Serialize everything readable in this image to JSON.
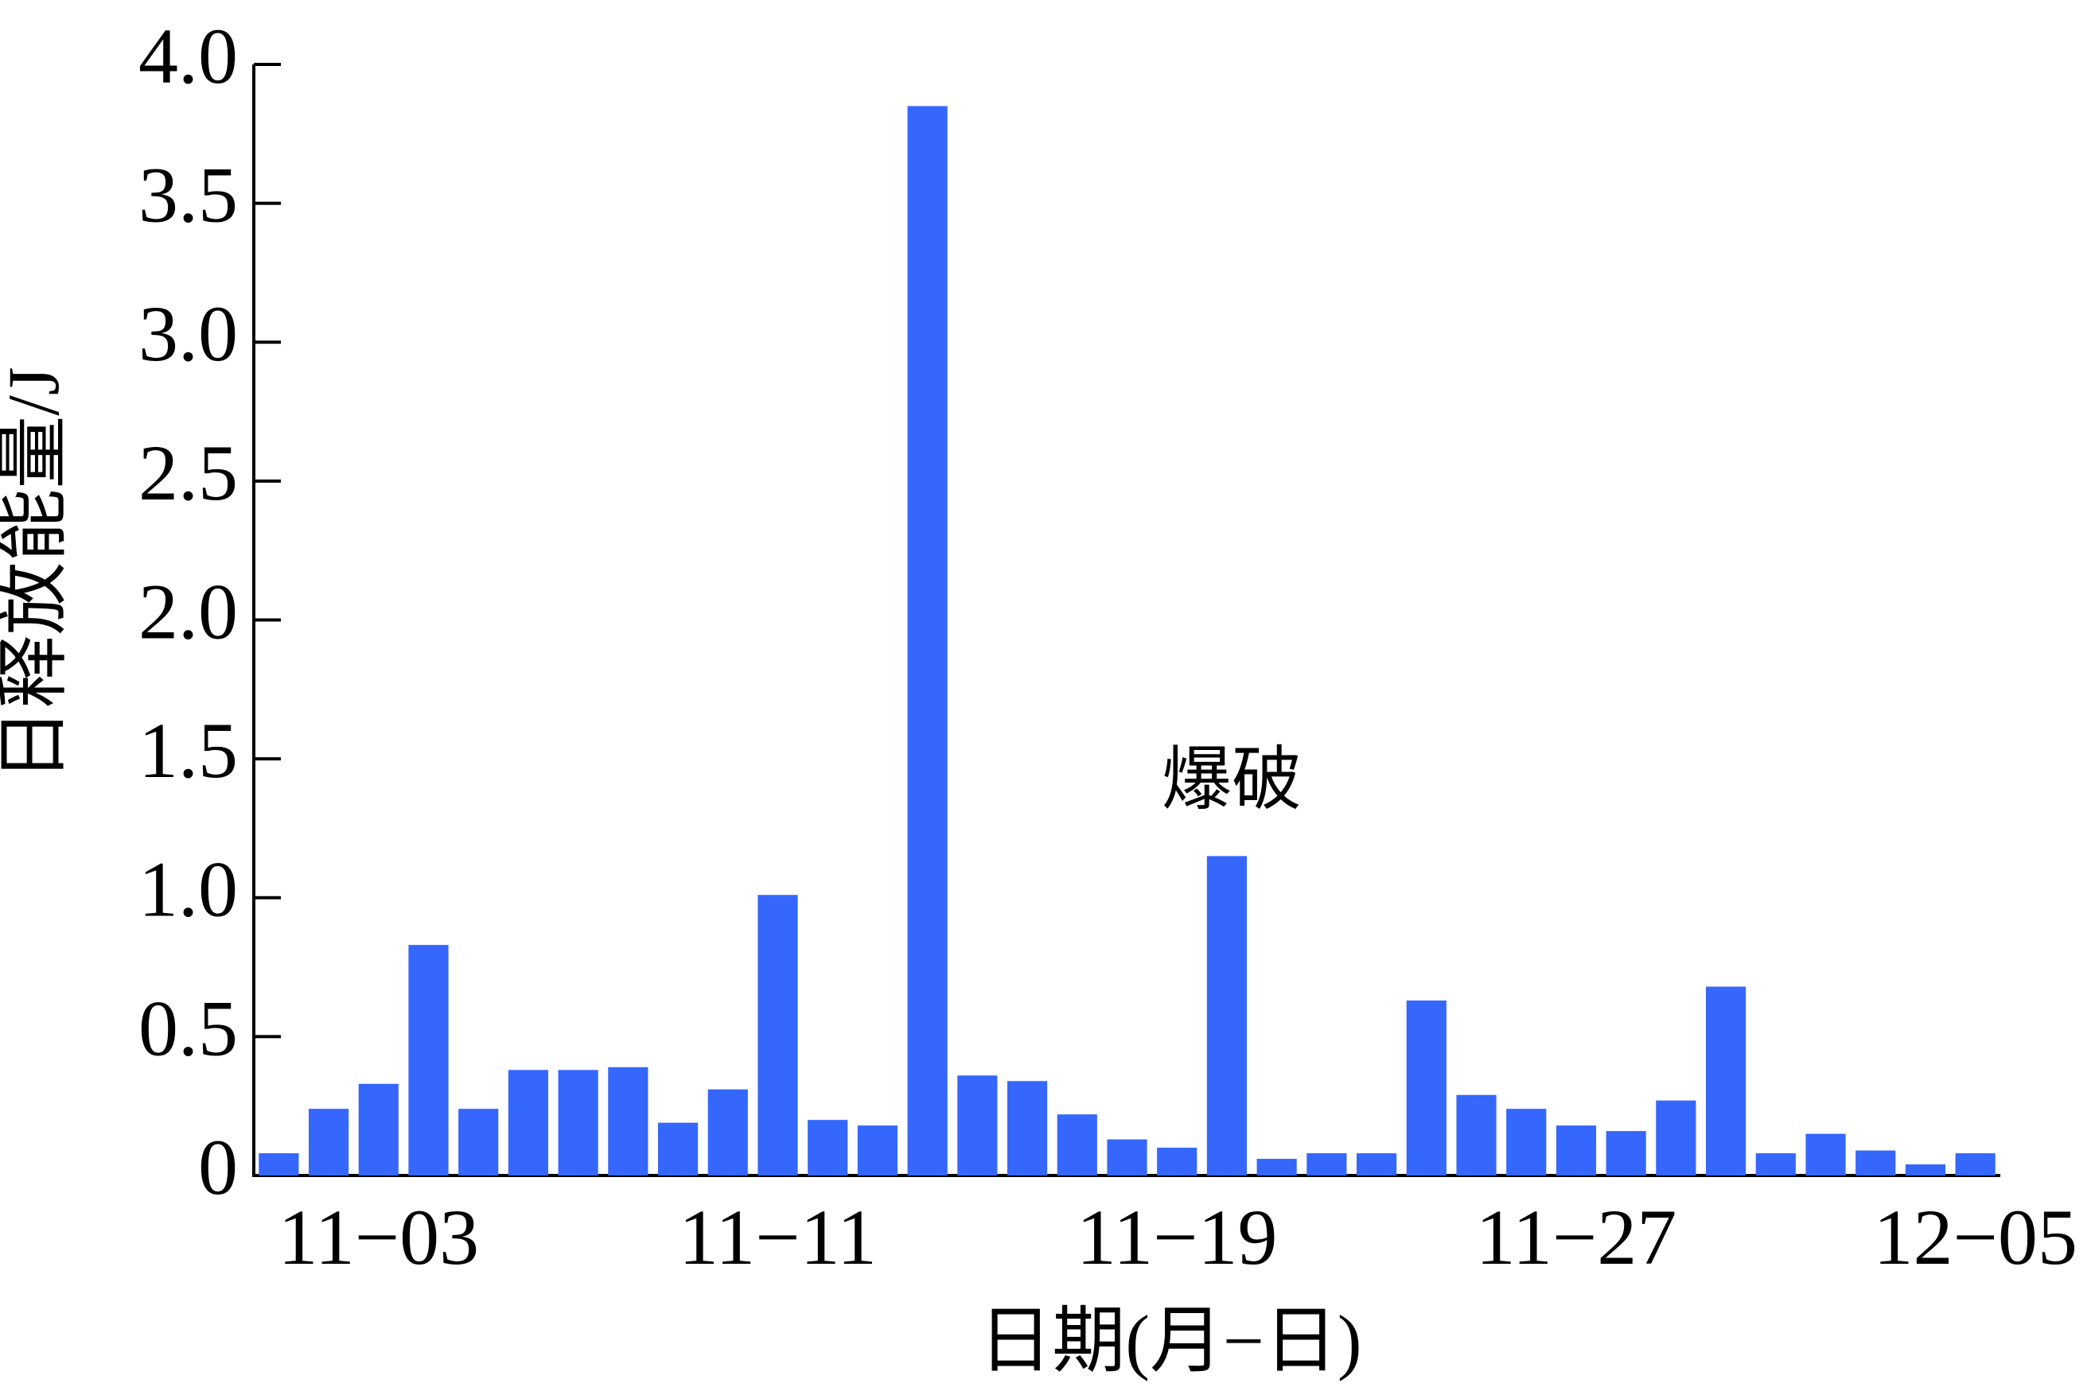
{
  "chart_data": {
    "type": "bar",
    "xlabel": "日期(月−日)",
    "ylabel": "日释放能量/J",
    "annotation": "爆破",
    "categories": [
      null,
      null,
      "11−03",
      null,
      null,
      null,
      null,
      null,
      null,
      null,
      "11−11",
      null,
      null,
      null,
      null,
      null,
      null,
      null,
      "11−19",
      null,
      null,
      null,
      null,
      null,
      null,
      null,
      "11−27",
      null,
      null,
      null,
      null,
      null,
      null,
      null,
      "12−05"
    ],
    "values": [
      0.08,
      0.24,
      0.33,
      0.83,
      0.24,
      0.38,
      0.38,
      0.39,
      0.19,
      0.31,
      1.01,
      0.2,
      0.18,
      3.85,
      0.36,
      0.34,
      0.22,
      0.13,
      0.1,
      1.15,
      0.06,
      0.08,
      0.08,
      0.63,
      0.29,
      0.24,
      0.18,
      0.16,
      0.27,
      0.68,
      0.08,
      0.15,
      0.09,
      0.04,
      0.08
    ],
    "color": "#3567fd",
    "ylim": [
      0,
      4
    ],
    "yticks": [
      0,
      0.5,
      {
        "value": 1,
        "label": "1.0"
      },
      1.5,
      {
        "value": 2,
        "label": "2.0"
      },
      2.5,
      {
        "value": 3,
        "label": "3.0"
      },
      3.5,
      {
        "value": 4,
        "label": "4.0"
      }
    ]
  }
}
